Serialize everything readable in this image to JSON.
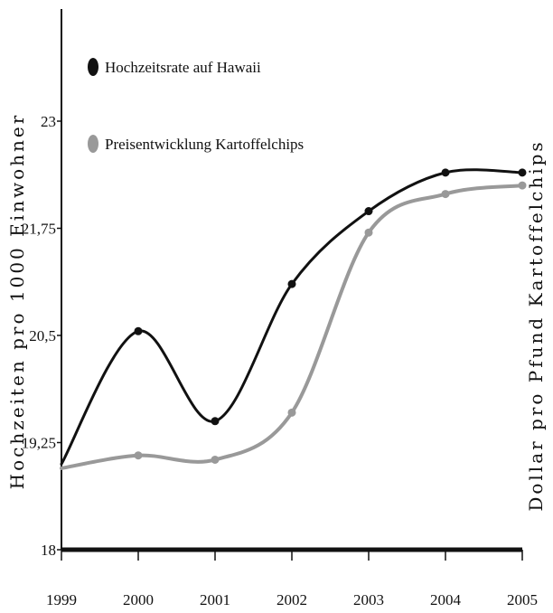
{
  "chart_data": {
    "type": "line",
    "categories": [
      "1999",
      "2000",
      "2001",
      "2002",
      "2003",
      "2004",
      "2005"
    ],
    "ylabel": "Hochzeiten pro 1000 Einwohner",
    "y2label": "Dollar pro Pfund Kartoffelchips",
    "ylim": [
      18,
      23.2
    ],
    "yticks": [
      "18",
      "19,25",
      "20,5",
      "21,75",
      "23"
    ],
    "ytick_values": [
      18,
      19.25,
      20.5,
      21.75,
      23
    ],
    "grid": false,
    "legend_position": "top-left",
    "series": [
      {
        "name": "Hochzeitsrate auf Hawaii",
        "color": "#111111",
        "values": [
          19.0,
          20.55,
          19.5,
          21.1,
          21.95,
          22.4,
          22.4
        ],
        "markers": [
          false,
          true,
          true,
          true,
          true,
          true,
          true
        ]
      },
      {
        "name": "Preisentwicklung Kartoffelchips",
        "color": "#999999",
        "values": [
          18.95,
          19.1,
          19.05,
          19.6,
          21.7,
          22.15,
          22.25
        ],
        "markers": [
          false,
          true,
          true,
          true,
          true,
          true,
          true
        ]
      }
    ]
  }
}
